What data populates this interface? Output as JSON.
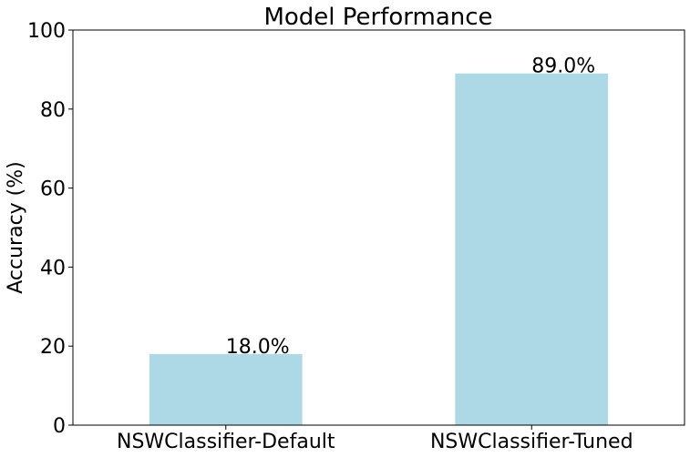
{
  "chart_data": {
    "type": "bar",
    "title": "Model Performance",
    "xlabel": "",
    "ylabel": "Accuracy (%)",
    "categories": [
      "NSWClassifier-Default",
      "NSWClassifier-Tuned"
    ],
    "values": [
      18.0,
      89.0
    ],
    "data_labels": [
      "18.0%",
      "89.0%"
    ],
    "ylim": [
      0,
      100
    ],
    "yticks": [
      0,
      20,
      40,
      60,
      80,
      100
    ],
    "bar_color": "#add8e6",
    "grid": false,
    "legend": "none"
  }
}
